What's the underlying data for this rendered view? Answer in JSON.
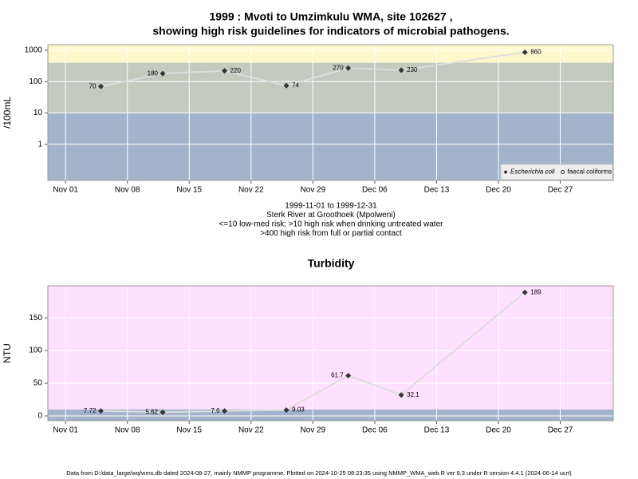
{
  "chart_data": [
    {
      "type": "line",
      "title": [
        "1999 : Mvoti to Umzimkulu WMA, site 102627 ,",
        "showing high risk guidelines for indicators of microbial pathogens."
      ],
      "notes": [
        "1999-11-01 to 1999-12-31",
        "Sterk River at Groothoek (Mpolweni)",
        "<=10 low-med risk; >10 high risk when drinking untreated water",
        ">400 high risk from full or partial contact"
      ],
      "ylabel": "/100mL",
      "log_scale": true,
      "grid": true,
      "legend": "bottom-right",
      "x": [
        "1999-11-05",
        "1999-11-12",
        "1999-11-19",
        "1999-11-26",
        "1999-12-03",
        "1999-12-09",
        "1999-12-23"
      ],
      "series": [
        {
          "name": "Escherichia coli",
          "color": "#333333",
          "values": [
            70,
            180,
            220,
            74,
            270,
            230,
            860
          ]
        },
        {
          "name": "faecal coliforms",
          "color": "#333333",
          "values": [
            null,
            null,
            null,
            null,
            null,
            null,
            null
          ]
        }
      ],
      "xlim": [
        "1999-10-30",
        "2000-01-02"
      ],
      "xticks": [
        {
          "value": "1999-11-01",
          "label": "Nov 01"
        },
        {
          "value": "1999-11-08",
          "label": "Nov 08"
        },
        {
          "value": "1999-11-15",
          "label": "Nov 15"
        },
        {
          "value": "1999-11-22",
          "label": "Nov 22"
        },
        {
          "value": "1999-11-29",
          "label": "Nov 29"
        },
        {
          "value": "1999-12-06",
          "label": "Dec 06"
        },
        {
          "value": "1999-12-13",
          "label": "Dec 13"
        },
        {
          "value": "1999-12-20",
          "label": "Dec 20"
        },
        {
          "value": "1999-12-27",
          "label": "Dec 27"
        }
      ],
      "ylim": [
        0.07,
        1500
      ],
      "yticks": [
        1,
        10,
        100,
        1000
      ],
      "thresholds": [
        10,
        400
      ],
      "band_colors": [
        "#a3b3cc",
        "#c3cbbf",
        "#fff8cc"
      ]
    },
    {
      "type": "line",
      "title": [
        "Turbidity"
      ],
      "ylabel": "NTU",
      "log_scale": false,
      "grid": true,
      "x": [
        "1999-11-05",
        "1999-11-12",
        "1999-11-19",
        "1999-11-26",
        "1999-12-03",
        "1999-12-09",
        "1999-12-23"
      ],
      "series": [
        {
          "color": "#333333",
          "values": [
            7.72,
            5.62,
            7.6,
            9.03,
            61.7,
            32.1,
            189
          ]
        }
      ],
      "xlim": [
        "1999-10-30",
        "2000-01-02"
      ],
      "xticks": [
        {
          "value": "1999-11-01",
          "label": "Nov 01"
        },
        {
          "value": "1999-11-08",
          "label": "Nov 08"
        },
        {
          "value": "1999-11-15",
          "label": "Nov 15"
        },
        {
          "value": "1999-11-22",
          "label": "Nov 22"
        },
        {
          "value": "1999-11-29",
          "label": "Nov 29"
        },
        {
          "value": "1999-12-06",
          "label": "Dec 06"
        },
        {
          "value": "1999-12-13",
          "label": "Dec 13"
        },
        {
          "value": "1999-12-20",
          "label": "Dec 20"
        },
        {
          "value": "1999-12-27",
          "label": "Dec 27"
        }
      ],
      "ylim": [
        -7.3,
        199
      ],
      "yticks": [
        0,
        50,
        100,
        150
      ],
      "thresholds": [
        10
      ],
      "band_colors": [
        "#a3b3cc",
        "#ffe0ff"
      ]
    }
  ],
  "footer": "Data from D:/data_large/wq/wms.db dated 2024-08-27, mainly NMMP programme. Plotted on 2024-10-25 08:23:35 using NMMP_WMA_web.R ver 9.3 under R version 4.4.1 (2024-06-14 ucrt)"
}
